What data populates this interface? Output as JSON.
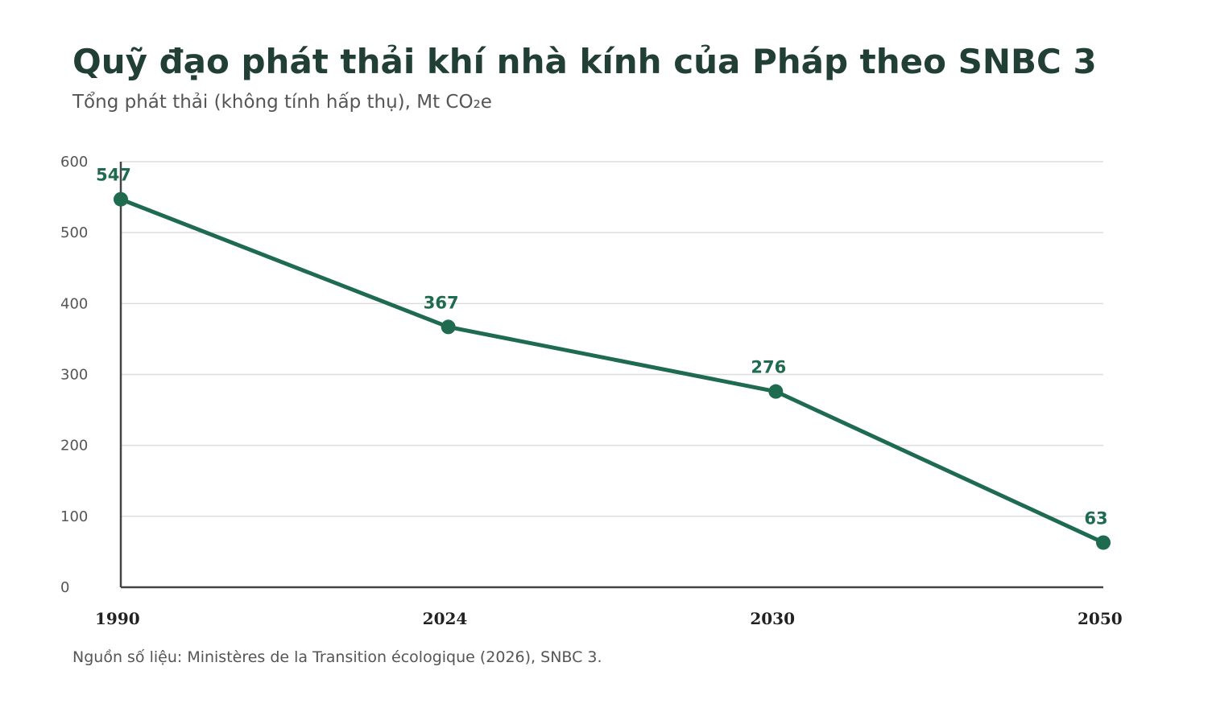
{
  "header": {
    "title": "Quỹ đạo phát thải khí nhà kính của Pháp theo SNBC 3",
    "subtitle": "Tổng phát thải (không tính hấp thụ), Mt CO₂e"
  },
  "footer": {
    "source": "Nguồn số liệu: Ministères de la Transition écologique (2026), SNBC 3."
  },
  "chart_data": {
    "type": "line",
    "categories": [
      "1990",
      "2024",
      "2030",
      "2050"
    ],
    "series": [
      {
        "values": [
          547,
          367,
          276,
          63
        ],
        "color": "#1f6b4f"
      }
    ],
    "data_labels": [
      "547",
      "367",
      "276",
      "63"
    ],
    "ylim": [
      0,
      600
    ],
    "yticks": [
      0,
      100,
      200,
      300,
      400,
      500,
      600
    ],
    "grid": true,
    "legend": "none",
    "xlabel": "",
    "ylabel": ""
  }
}
